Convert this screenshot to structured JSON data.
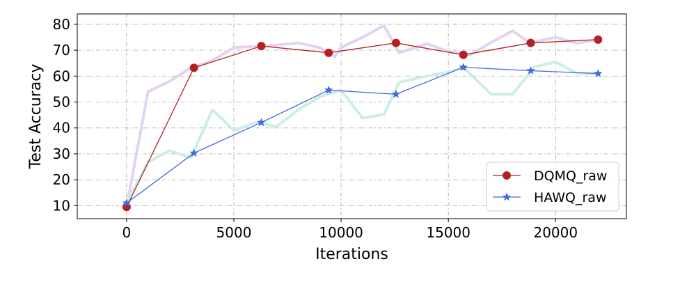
{
  "chart_data": {
    "type": "line",
    "title": "",
    "xlabel": "Iterations",
    "ylabel": "Test Accuracy",
    "xlim": [
      -2300,
      23300
    ],
    "ylim": [
      5,
      84
    ],
    "xticks": [
      0,
      5000,
      10000,
      15000,
      20000
    ],
    "yticks": [
      10,
      20,
      30,
      40,
      50,
      60,
      70,
      80
    ],
    "xtick_labels": [
      "0",
      "5000",
      "10000",
      "15000",
      "20000"
    ],
    "ytick_labels": [
      "10",
      "20",
      "30",
      "40",
      "50",
      "60",
      "70",
      "80"
    ],
    "grid": true,
    "grid_style": "dashdot",
    "legend_position": "lower-right",
    "series": [
      {
        "name": "DQMQ_raw",
        "color": "#b22222",
        "marker": "circle",
        "x": [
          0,
          3140,
          6280,
          9420,
          12560,
          15700,
          18840,
          21980
        ],
        "y": [
          9.5,
          63.2,
          71.6,
          69.0,
          72.8,
          68.2,
          72.8,
          74.1
        ]
      },
      {
        "name": "HAWQ_raw",
        "color": "#4169e1",
        "marker": "star",
        "x": [
          0,
          3140,
          6280,
          9420,
          12560,
          15700,
          18840,
          21980
        ],
        "y": [
          11.0,
          30.3,
          42.1,
          54.6,
          53.0,
          63.4,
          62.1,
          61.0
        ]
      }
    ],
    "background_series": [
      {
        "color": "#e4d2f2",
        "x": [
          0,
          1000,
          2000,
          3000,
          4000,
          5000,
          6000,
          7000,
          8000,
          9000,
          9700,
          10000,
          11000,
          12000,
          12700,
          14000,
          15000,
          16000,
          17000,
          18000,
          18800,
          20000,
          21000,
          22000
        ],
        "y": [
          9.5,
          54,
          58,
          63.2,
          66,
          71,
          71.5,
          72,
          72.8,
          71,
          67.5,
          71,
          75,
          79.5,
          69,
          72.5,
          69.5,
          68.2,
          73,
          77.5,
          72.8,
          75,
          72.7,
          74.1
        ]
      },
      {
        "color": "#cdeee2",
        "x": [
          0,
          1000,
          2000,
          3000,
          4000,
          5000,
          6000,
          7000,
          8000,
          9000,
          10000,
          11000,
          12000,
          12700,
          14000,
          15000,
          15700,
          17000,
          18000,
          19000,
          20000,
          21000,
          22000
        ],
        "y": [
          11,
          26.8,
          31.2,
          28.5,
          47,
          39,
          42.1,
          40.5,
          47,
          52,
          54.6,
          43.8,
          45.2,
          57.6,
          60,
          61.5,
          63.4,
          53,
          53,
          63.5,
          65.5,
          61,
          61
        ]
      }
    ]
  }
}
